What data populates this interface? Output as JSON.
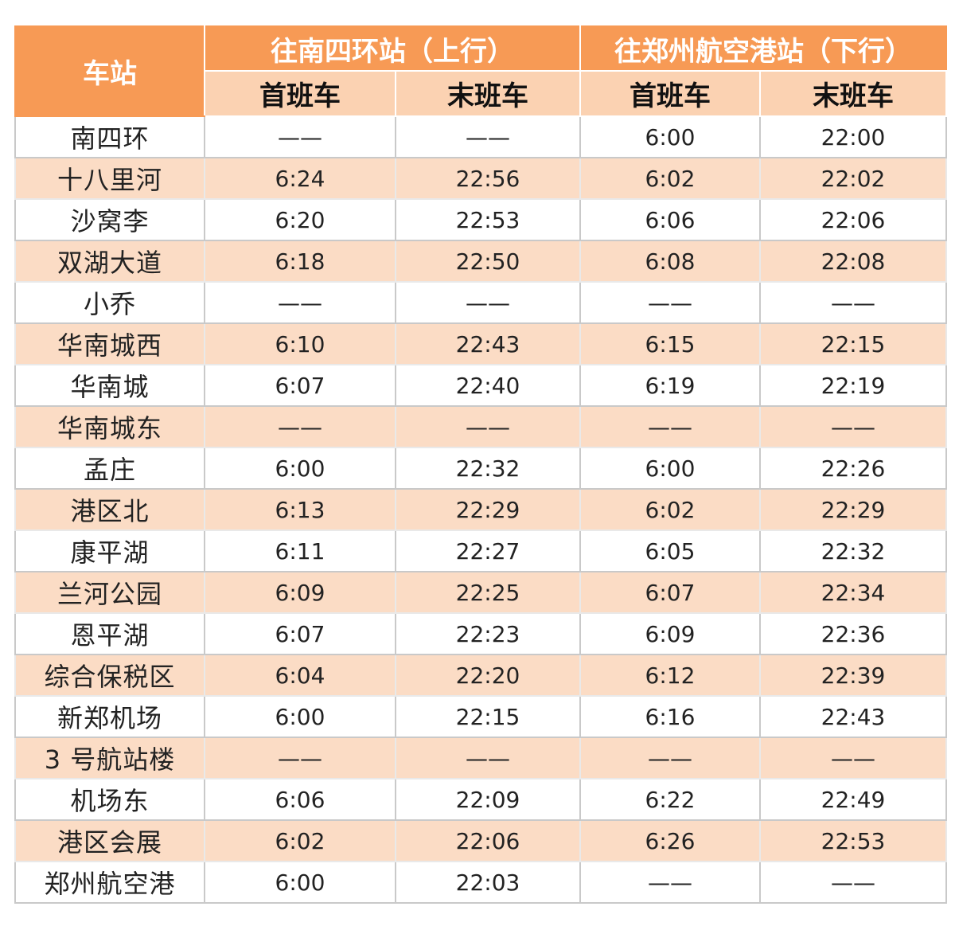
{
  "header": {
    "station": "车站",
    "up_direction": "往南四环站（上行）",
    "down_direction": "往郑州航空港站（下行）",
    "first_train": "首班车",
    "last_train": "末班车"
  },
  "colors": {
    "header_bg": "#f79a55",
    "subheader_bg": "#fbd2b2",
    "stripe_bg": "#fbdcc5"
  },
  "rows": [
    {
      "station": "南四环",
      "up_first": "——",
      "up_last": "——",
      "down_first": "6:00",
      "down_last": "22:00"
    },
    {
      "station": "十八里河",
      "up_first": "6:24",
      "up_last": "22:56",
      "down_first": "6:02",
      "down_last": "22:02"
    },
    {
      "station": "沙窝李",
      "up_first": "6:20",
      "up_last": "22:53",
      "down_first": "6:06",
      "down_last": "22:06"
    },
    {
      "station": "双湖大道",
      "up_first": "6:18",
      "up_last": "22:50",
      "down_first": "6:08",
      "down_last": "22:08"
    },
    {
      "station": "小乔",
      "up_first": "——",
      "up_last": "——",
      "down_first": "——",
      "down_last": "——"
    },
    {
      "station": "华南城西",
      "up_first": "6:10",
      "up_last": "22:43",
      "down_first": "6:15",
      "down_last": "22:15"
    },
    {
      "station": "华南城",
      "up_first": "6:07",
      "up_last": "22:40",
      "down_first": "6:19",
      "down_last": "22:19"
    },
    {
      "station": "华南城东",
      "up_first": "——",
      "up_last": "——",
      "down_first": "——",
      "down_last": "——"
    },
    {
      "station": "孟庄",
      "up_first": "6:00",
      "up_last": "22:32",
      "down_first": "6:00",
      "down_last": "22:26"
    },
    {
      "station": "港区北",
      "up_first": "6:13",
      "up_last": "22:29",
      "down_first": "6:02",
      "down_last": "22:29"
    },
    {
      "station": "康平湖",
      "up_first": "6:11",
      "up_last": "22:27",
      "down_first": "6:05",
      "down_last": "22:32"
    },
    {
      "station": "兰河公园",
      "up_first": "6:09",
      "up_last": "22:25",
      "down_first": "6:07",
      "down_last": "22:34"
    },
    {
      "station": "恩平湖",
      "up_first": "6:07",
      "up_last": "22:23",
      "down_first": "6:09",
      "down_last": "22:36"
    },
    {
      "station": "综合保税区",
      "up_first": "6:04",
      "up_last": "22:20",
      "down_first": "6:12",
      "down_last": "22:39"
    },
    {
      "station": "新郑机场",
      "up_first": "6:00",
      "up_last": "22:15",
      "down_first": "6:16",
      "down_last": "22:43"
    },
    {
      "station": "3 号航站楼",
      "up_first": "——",
      "up_last": "——",
      "down_first": "——",
      "down_last": "——"
    },
    {
      "station": "机场东",
      "up_first": "6:06",
      "up_last": "22:09",
      "down_first": "6:22",
      "down_last": "22:49"
    },
    {
      "station": "港区会展",
      "up_first": "6:02",
      "up_last": "22:06",
      "down_first": "6:26",
      "down_last": "22:53"
    },
    {
      "station": "郑州航空港",
      "up_first": "6:00",
      "up_last": "22:03",
      "down_first": "——",
      "down_last": "——"
    }
  ]
}
